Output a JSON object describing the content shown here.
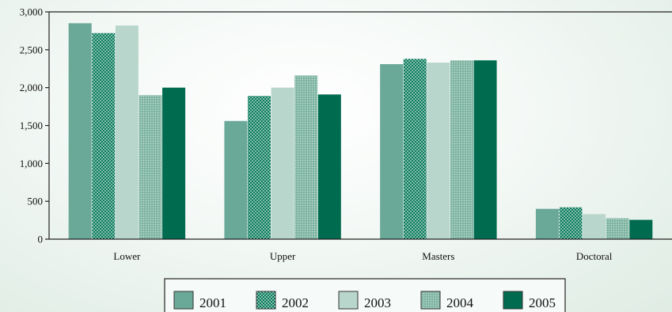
{
  "chart_data": {
    "type": "bar",
    "title": "",
    "xlabel": "",
    "ylabel": "",
    "categories": [
      "Lower",
      "Upper",
      "Masters",
      "Doctoral"
    ],
    "series": [
      {
        "name": "2001",
        "values": [
          2850,
          1560,
          2310,
          400
        ],
        "color": "#6aa898",
        "pattern": "solid"
      },
      {
        "name": "2002",
        "values": [
          2720,
          1890,
          2380,
          420
        ],
        "color": "#1e8a6c",
        "pattern": "dots-dense"
      },
      {
        "name": "2003",
        "values": [
          2820,
          2000,
          2330,
          330
        ],
        "color": "#b8d6cb",
        "pattern": "solid"
      },
      {
        "name": "2004",
        "values": [
          1900,
          2160,
          2360,
          275
        ],
        "color": "#8bbfae",
        "pattern": "dots-fine"
      },
      {
        "name": "2005",
        "values": [
          2000,
          1910,
          2360,
          255
        ],
        "color": "#006b4f",
        "pattern": "solid"
      }
    ],
    "ylim": [
      0,
      3000
    ],
    "yticks": [
      0,
      500,
      1000,
      1500,
      2000,
      2500,
      3000
    ],
    "ytick_labels": [
      "0",
      "500",
      "1,000",
      "1,500",
      "2,000",
      "2,500",
      "3,000"
    ],
    "grid": false,
    "legend_position": "bottom"
  }
}
